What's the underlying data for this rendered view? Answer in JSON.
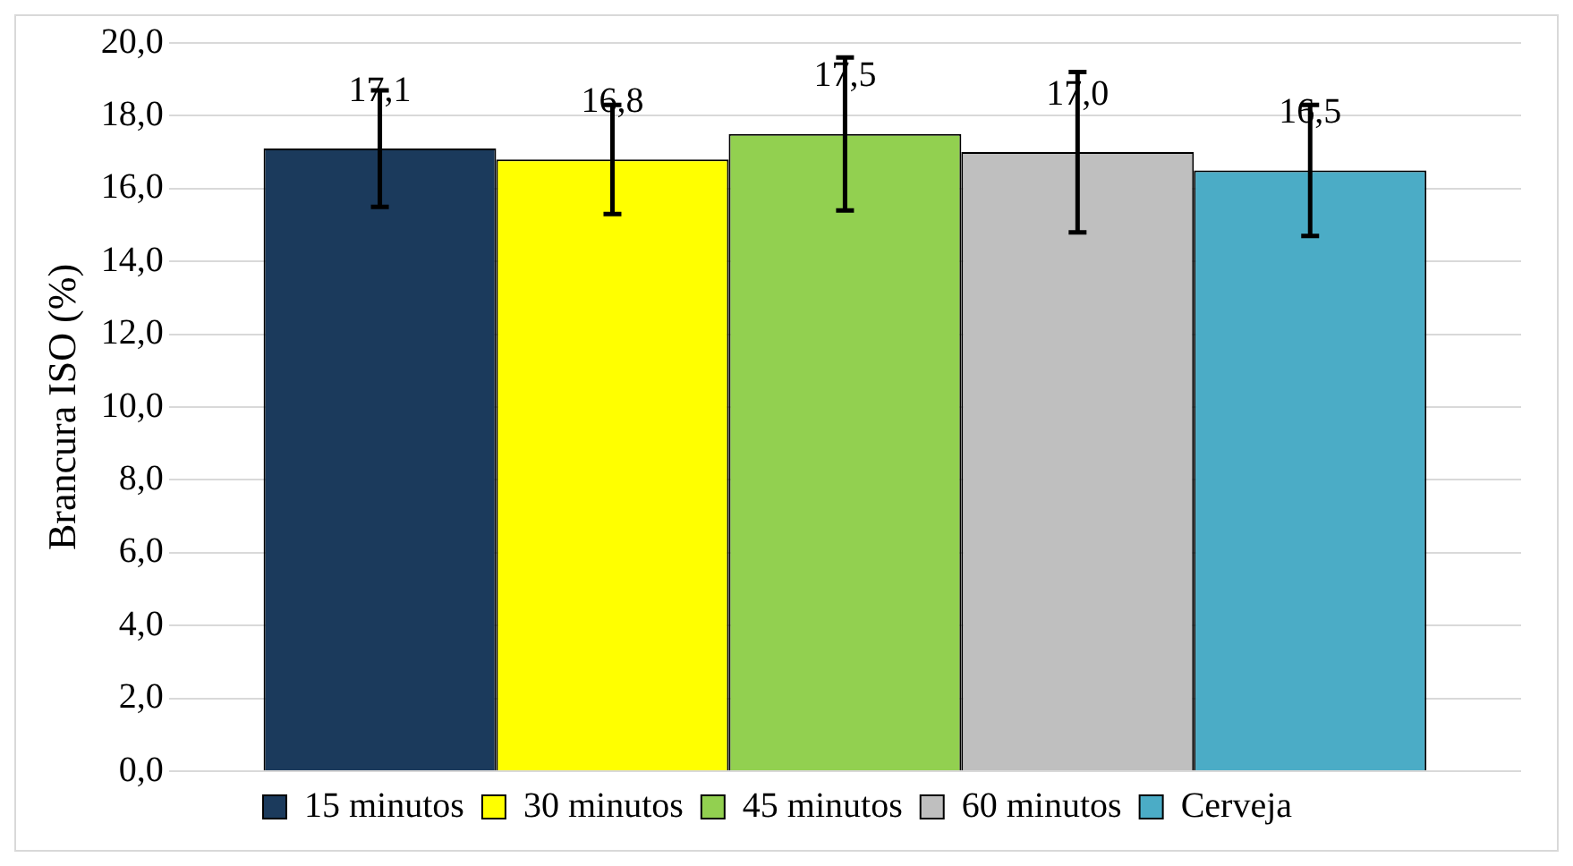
{
  "chart_data": {
    "type": "bar",
    "ylabel": "Brancura ISO (%)",
    "categories": [
      null
    ],
    "series": [
      {
        "name": "15 minutos",
        "color": "#1b3a5c",
        "values": [
          17.1
        ],
        "errors": [
          1.6
        ]
      },
      {
        "name": "30 minutos",
        "color": "#ffff00",
        "values": [
          16.8
        ],
        "errors": [
          1.5
        ]
      },
      {
        "name": "45 minutos",
        "color": "#92d050",
        "values": [
          17.5
        ],
        "errors": [
          2.1
        ]
      },
      {
        "name": "60 minutos",
        "color": "#bfbfbf",
        "values": [
          17.0
        ],
        "errors": [
          2.2
        ]
      },
      {
        "name": "Cerveja",
        "color": "#4bacc6",
        "values": [
          16.5
        ],
        "errors": [
          1.8
        ]
      }
    ],
    "ylim": [
      0,
      20
    ],
    "yticks": [
      {
        "value": 0,
        "label": "0,0"
      },
      {
        "value": 2,
        "label": "2,0"
      },
      {
        "value": 4,
        "label": "4,0"
      },
      {
        "value": 6,
        "label": "6,0"
      },
      {
        "value": 8,
        "label": "8,0"
      },
      {
        "value": 10,
        "label": "10,0"
      },
      {
        "value": 12,
        "label": "12,0"
      },
      {
        "value": 14,
        "label": "14,0"
      },
      {
        "value": 16,
        "label": "16,0"
      },
      {
        "value": 18,
        "label": "18,0"
      },
      {
        "value": 20,
        "label": "20,0"
      }
    ],
    "value_labels": [
      "17,1",
      "16,8",
      "17,5",
      "17,0",
      "16,5"
    ],
    "grid": "y",
    "legend": "bottom"
  }
}
